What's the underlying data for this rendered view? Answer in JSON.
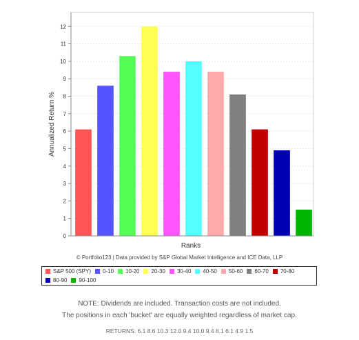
{
  "chart_data": {
    "type": "bar",
    "ylabel": "Annualized Return %",
    "xlabel": "Ranks",
    "ylim": [
      0,
      12.8
    ],
    "yticks": [
      0,
      1,
      2,
      3,
      4,
      5,
      6,
      7,
      8,
      9,
      10,
      11,
      12
    ],
    "grid": true,
    "categories": [
      "S&P 500 (SPY)",
      "0-10",
      "10-20",
      "20-30",
      "30-40",
      "40-50",
      "50-60",
      "60-70",
      "70-80",
      "80-90",
      "90-100"
    ],
    "values": [
      6.1,
      8.6,
      10.3,
      12.0,
      9.4,
      10.0,
      9.4,
      8.1,
      6.1,
      4.9,
      1.5
    ],
    "colors": [
      "#ff5555",
      "#5555ff",
      "#55ff55",
      "#ffff55",
      "#ff55ff",
      "#55ffff",
      "#ffaaaa",
      "#808080",
      "#c00000",
      "#0000b4",
      "#00b400"
    ],
    "legend_placement": "bottom"
  },
  "credit": "© Portfolio123 | Data provided by S&P Global Market Intelligence and ICE Data, LLP",
  "notes": {
    "line1": "NOTE: Dividends are included. Transaction costs are not included.",
    "line2": "The positions in each 'bucket' are equally weighted regardless of market cap."
  },
  "returns_text": "RETURNS: 6.1 8.6 10.3 12.0 9.4 10.0 9.4 8.1 6.1 4.9 1.5"
}
